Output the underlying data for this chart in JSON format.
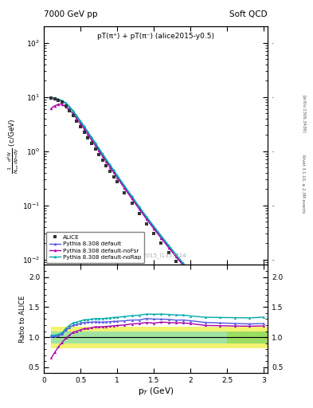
{
  "title_left": "7000 GeV pp",
  "title_right": "Soft QCD",
  "annotation": "pT(π⁺) + pT(π⁻) (alice2015-y0.5)",
  "watermark": "ALICE_2015_I1357424",
  "right_label": "Rivet 3.1.10, ≥ 2.3M events",
  "arxiv_label": "[arXiv:1306.3436]",
  "ylabel_ratio": "Ratio to ALICE",
  "xlabel": "p$_T$ (GeV)",
  "xlim": [
    0,
    3.05
  ],
  "ylim_main": [
    0.008,
    200
  ],
  "ylim_ratio": [
    0.4,
    2.2
  ],
  "alice_pt": [
    0.1,
    0.15,
    0.2,
    0.25,
    0.3,
    0.35,
    0.4,
    0.45,
    0.5,
    0.55,
    0.6,
    0.65,
    0.7,
    0.75,
    0.8,
    0.85,
    0.9,
    0.95,
    1.0,
    1.1,
    1.2,
    1.3,
    1.4,
    1.5,
    1.6,
    1.7,
    1.8,
    1.9,
    2.0,
    2.2,
    2.4,
    2.6,
    2.8,
    3.0
  ],
  "alice_y": [
    9.5,
    9.2,
    8.8,
    8.0,
    6.8,
    5.6,
    4.5,
    3.6,
    2.85,
    2.25,
    1.78,
    1.4,
    1.1,
    0.87,
    0.69,
    0.545,
    0.432,
    0.342,
    0.272,
    0.172,
    0.109,
    0.07,
    0.045,
    0.03,
    0.02,
    0.0135,
    0.0092,
    0.0063,
    0.0044,
    0.0022,
    0.0011,
    0.00056,
    0.00029,
    0.00015
  ],
  "default_pt": [
    0.1,
    0.15,
    0.2,
    0.25,
    0.3,
    0.35,
    0.4,
    0.45,
    0.5,
    0.55,
    0.6,
    0.65,
    0.7,
    0.75,
    0.8,
    0.85,
    0.9,
    0.95,
    1.0,
    1.1,
    1.2,
    1.3,
    1.4,
    1.5,
    1.6,
    1.7,
    1.8,
    1.9,
    2.0,
    2.2,
    2.4,
    2.6,
    2.8,
    3.0
  ],
  "default_y": [
    9.6,
    9.3,
    9.0,
    8.4,
    7.6,
    6.5,
    5.4,
    4.35,
    3.5,
    2.8,
    2.22,
    1.75,
    1.38,
    1.09,
    0.862,
    0.684,
    0.543,
    0.432,
    0.344,
    0.219,
    0.14,
    0.09,
    0.059,
    0.039,
    0.026,
    0.0175,
    0.0118,
    0.0081,
    0.0056,
    0.00274,
    0.00136,
    0.000688,
    0.000354,
    0.000184
  ],
  "noFsr_pt": [
    0.1,
    0.15,
    0.2,
    0.25,
    0.3,
    0.35,
    0.4,
    0.45,
    0.5,
    0.55,
    0.6,
    0.65,
    0.7,
    0.75,
    0.8,
    0.85,
    0.9,
    0.95,
    1.0,
    1.1,
    1.2,
    1.3,
    1.4,
    1.5,
    1.6,
    1.7,
    1.8,
    1.9,
    2.0,
    2.2,
    2.4,
    2.6,
    2.8,
    3.0
  ],
  "noFsr_y": [
    6.2,
    6.9,
    7.4,
    7.3,
    6.7,
    5.8,
    4.88,
    3.96,
    3.2,
    2.57,
    2.04,
    1.62,
    1.29,
    1.02,
    0.81,
    0.643,
    0.511,
    0.407,
    0.325,
    0.207,
    0.133,
    0.086,
    0.056,
    0.037,
    0.025,
    0.0168,
    0.0114,
    0.0078,
    0.0054,
    0.00263,
    0.00131,
    0.000664,
    0.000343,
    0.000178
  ],
  "noRap_pt": [
    0.1,
    0.15,
    0.2,
    0.25,
    0.3,
    0.35,
    0.4,
    0.45,
    0.5,
    0.55,
    0.6,
    0.65,
    0.7,
    0.75,
    0.8,
    0.85,
    0.9,
    0.95,
    1.0,
    1.1,
    1.2,
    1.3,
    1.4,
    1.5,
    1.6,
    1.7,
    1.8,
    1.9,
    2.0,
    2.2,
    2.4,
    2.6,
    2.8,
    3.0
  ],
  "noRap_y": [
    9.8,
    9.5,
    9.2,
    8.6,
    7.8,
    6.7,
    5.58,
    4.5,
    3.62,
    2.9,
    2.3,
    1.82,
    1.44,
    1.14,
    0.903,
    0.717,
    0.57,
    0.454,
    0.362,
    0.231,
    0.148,
    0.0956,
    0.0623,
    0.0414,
    0.0277,
    0.0186,
    0.0126,
    0.00862,
    0.00595,
    0.00293,
    0.00146,
    0.000742,
    0.000383,
    0.0002
  ],
  "color_alice": "#333333",
  "color_default": "#5555dd",
  "color_noFsr": "#aa00aa",
  "color_noRap": "#00aaaa",
  "color_band_green": "#55cc55",
  "color_band_yellow": "#eeee44",
  "band_green_alpha": 0.55,
  "band_yellow_alpha": 0.75,
  "band1_xlo": 0.1,
  "band1_xhi": 2.5,
  "band1_green_lo": 0.9,
  "band1_green_hi": 1.1,
  "band1_yellow_lo": 0.82,
  "band1_yellow_hi": 1.18,
  "band2_xlo": 2.5,
  "band2_xhi": 3.05,
  "band2_green_lo": 0.9,
  "band2_green_hi": 1.1,
  "band2_yellow_lo": 0.82,
  "band2_yellow_hi": 0.82
}
